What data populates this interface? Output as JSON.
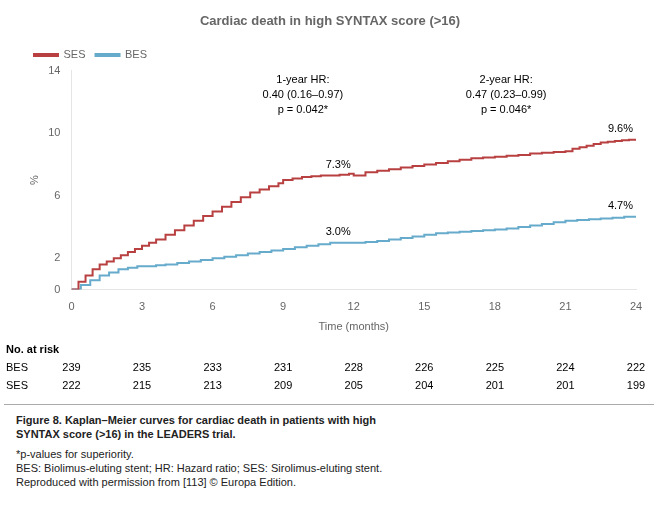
{
  "chart_data": {
    "type": "line",
    "title": "Cardiac death in high SYNTAX score (>16)",
    "x_label": "Time (months)",
    "y_label": "%",
    "xlim": [
      0,
      24
    ],
    "ylim": [
      0,
      14
    ],
    "xticks": [
      0,
      3,
      6,
      9,
      12,
      15,
      18,
      21,
      24
    ],
    "yticks": [
      0,
      2,
      6,
      10,
      14
    ],
    "grid": false,
    "legend": "upper left",
    "line_style": "step",
    "series": [
      {
        "name": "SES",
        "color": "#b84040",
        "x": [
          0,
          0.3,
          0.6,
          0.9,
          1.2,
          1.5,
          1.8,
          2.1,
          2.4,
          2.7,
          3.0,
          3.3,
          3.6,
          4.0,
          4.4,
          4.8,
          5.2,
          5.6,
          6.0,
          6.4,
          6.8,
          7.2,
          7.6,
          8.0,
          8.4,
          8.8,
          9.0,
          9.4,
          9.8,
          10.2,
          10.6,
          11.0,
          11.4,
          11.8,
          12.0,
          12.5,
          13.0,
          13.5,
          14.0,
          14.5,
          15.0,
          15.5,
          16.0,
          16.5,
          17.0,
          17.5,
          18.0,
          18.5,
          19.0,
          19.5,
          20.0,
          20.5,
          21.0,
          21.3,
          21.6,
          21.9,
          22.2,
          22.5,
          22.8,
          23.1,
          23.4,
          23.7,
          24.0
        ],
        "values": [
          0,
          0.5,
          0.9,
          1.3,
          1.6,
          1.8,
          2.0,
          2.2,
          2.4,
          2.6,
          2.8,
          3.0,
          3.2,
          3.5,
          3.8,
          4.1,
          4.4,
          4.7,
          5.0,
          5.3,
          5.6,
          5.9,
          6.2,
          6.4,
          6.6,
          6.8,
          7.0,
          7.1,
          7.2,
          7.25,
          7.3,
          7.3,
          7.35,
          7.4,
          7.3,
          7.5,
          7.6,
          7.7,
          7.8,
          7.9,
          8.0,
          8.1,
          8.2,
          8.3,
          8.4,
          8.45,
          8.5,
          8.55,
          8.6,
          8.7,
          8.75,
          8.8,
          8.85,
          9.0,
          9.1,
          9.2,
          9.3,
          9.4,
          9.45,
          9.5,
          9.55,
          9.58,
          9.6
        ],
        "value_labels": [
          null,
          null,
          null,
          null,
          null,
          null,
          null,
          null,
          null,
          null,
          null,
          null,
          null,
          null,
          null,
          null,
          null,
          null,
          null,
          null,
          null,
          null,
          null,
          null,
          null,
          null,
          null,
          null,
          null,
          null,
          null,
          null,
          null,
          null,
          "7.3%",
          null,
          null,
          null,
          null,
          null,
          null,
          null,
          null,
          null,
          null,
          null,
          null,
          null,
          null,
          null,
          null,
          null,
          null,
          null,
          null,
          null,
          null,
          null,
          null,
          null,
          null,
          null,
          "9.6%"
        ]
      },
      {
        "name": "BES",
        "color": "#66aacc",
        "x": [
          0,
          0.4,
          0.8,
          1.2,
          1.6,
          2.0,
          2.4,
          2.8,
          3.2,
          3.6,
          4.0,
          4.5,
          5.0,
          5.5,
          6.0,
          6.5,
          7.0,
          7.5,
          8.0,
          8.5,
          9.0,
          9.5,
          10.0,
          10.5,
          11.0,
          11.5,
          12.0,
          12.5,
          13.0,
          13.5,
          14.0,
          14.5,
          15.0,
          15.5,
          16.0,
          16.5,
          17.0,
          17.5,
          18.0,
          18.5,
          19.0,
          19.5,
          20.0,
          20.5,
          21.0,
          21.5,
          22.0,
          22.5,
          23.0,
          23.5,
          24.0
        ],
        "values": [
          0,
          0.3,
          0.6,
          0.9,
          1.1,
          1.3,
          1.4,
          1.5,
          1.5,
          1.55,
          1.6,
          1.7,
          1.8,
          1.9,
          2.0,
          2.1,
          2.2,
          2.3,
          2.4,
          2.5,
          2.6,
          2.7,
          2.8,
          2.9,
          3.0,
          3.0,
          3.0,
          3.05,
          3.1,
          3.2,
          3.3,
          3.4,
          3.5,
          3.6,
          3.65,
          3.7,
          3.75,
          3.8,
          3.85,
          3.9,
          4.0,
          4.1,
          4.2,
          4.3,
          4.4,
          4.45,
          4.5,
          4.55,
          4.6,
          4.65,
          4.7
        ],
        "value_labels": [
          null,
          null,
          null,
          null,
          null,
          null,
          null,
          null,
          null,
          null,
          null,
          null,
          null,
          null,
          null,
          null,
          null,
          null,
          null,
          null,
          null,
          null,
          null,
          null,
          null,
          null,
          "3.0%",
          null,
          null,
          null,
          null,
          null,
          null,
          null,
          null,
          null,
          null,
          null,
          null,
          null,
          null,
          null,
          null,
          null,
          null,
          null,
          null,
          null,
          null,
          null,
          "4.7%"
        ]
      }
    ],
    "annotations": [
      "1-year HR:\n0.40 (0.16–0.97)\np = 0.042*",
      "2-year HR:\n0.47 (0.23–0.99)\np = 0.046*"
    ],
    "risk_table": {
      "title": "No. at risk",
      "x": [
        0,
        3,
        6,
        9,
        12,
        15,
        18,
        21,
        24
      ],
      "rows": [
        {
          "name": "BES",
          "values": [
            239,
            235,
            233,
            231,
            228,
            226,
            225,
            224,
            222
          ]
        },
        {
          "name": "SES",
          "values": [
            222,
            215,
            213,
            209,
            205,
            204,
            201,
            201,
            199
          ]
        }
      ]
    },
    "caption": "Figure 8. Kaplan–Meier curves for cardiac death in patients with high\nSYNTAX score (>16) in the LEADERS trial.",
    "footnote": "*p-values for superiority.\nBES: Biolimus-eluting stent; HR: Hazard ratio; SES: Sirolimus-eluting stent.\nReproduced with permission from [113] © Europa Edition."
  }
}
